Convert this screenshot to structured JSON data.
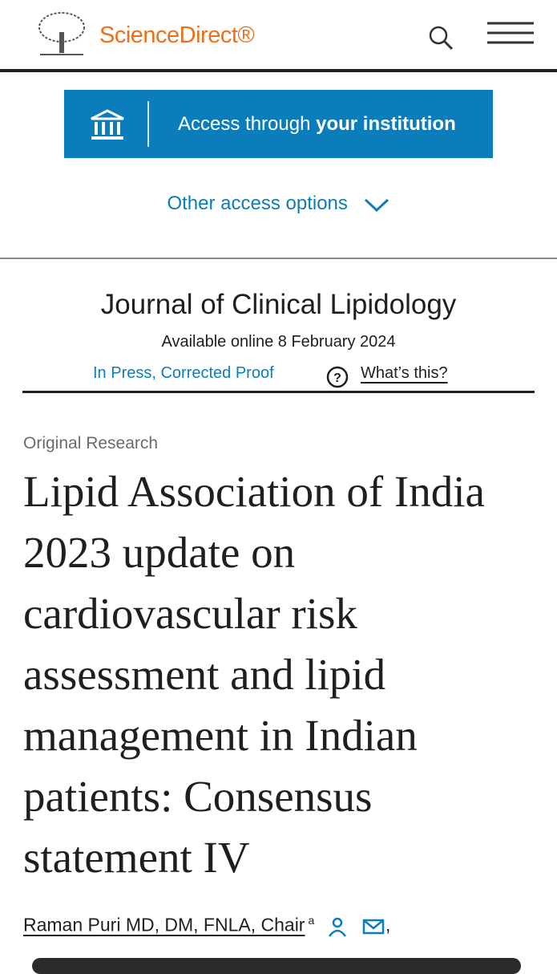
{
  "header": {
    "brand": "ScienceDirect®"
  },
  "access": {
    "button_prefix": "Access through",
    "button_strong": "your institution",
    "other": "Other access options"
  },
  "journal": {
    "name": "Journal of Clinical Lipidology",
    "available": "Available online 8 February 2024",
    "status": "In Press, Corrected Proof",
    "help": "What’s this?"
  },
  "article": {
    "type": "Original Research",
    "title": "Lipid Association of India 2023 update on cardiovascular risk assessment and lipid management in Indian patients: Consensus statement IV"
  },
  "author": {
    "name": "Raman Puri MD, DM, FNLA, Chair",
    "sup": "a",
    "sep": ","
  }
}
